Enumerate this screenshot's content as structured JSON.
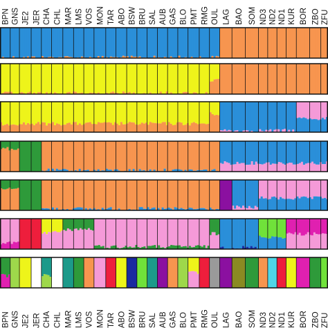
{
  "chart_data": {
    "type": "bar",
    "stacked": true,
    "normalized": true,
    "grid": false,
    "legend": "none",
    "xlabel": "",
    "ylabel": "",
    "ylim": [
      0,
      1
    ],
    "populations": [
      "BPN",
      "GNS",
      "JE2",
      "JER",
      "CHA",
      "CHL",
      "MAR",
      "LMS",
      "VOS",
      "MON",
      "TAR",
      "ABO",
      "BSW",
      "BRU",
      "SAL",
      "AUB",
      "GAS",
      "BLO",
      "PMT",
      "RMG",
      "OUL",
      "LAG",
      "BAO",
      "SOM",
      "ND3",
      "ND2",
      "ND1",
      "KUR",
      "BOR",
      "ZBO",
      "ZFU"
    ],
    "colors": {
      "orange": "#f7954f",
      "blue": "#2a8fd9",
      "yellow": "#eef41a",
      "green": "#2e9a3a",
      "pink": "#f59ad8",
      "purple": "#8b10a0",
      "red": "#ee1e3c",
      "lightgreen": "#9ed84b",
      "magenta": "#e020b0",
      "teal": "#1c9a8a",
      "navy": "#1a2aa0",
      "lime": "#70e23a",
      "olive": "#8a8a22",
      "white": "#ffffff",
      "brown": "#b06030",
      "cyan": "#4fd6e8",
      "grey": "#9a9a9a"
    },
    "rows": [
      {
        "K": 2,
        "segments": [
          {
            "from": "BPN",
            "to": "OUL",
            "components": [
              {
                "color": "blue",
                "value": 0.98
              },
              {
                "color": "orange",
                "value": 0.02
              }
            ]
          },
          {
            "from": "LAG",
            "to": "ZFU",
            "components": [
              {
                "color": "orange",
                "value": 1.0
              }
            ]
          }
        ]
      },
      {
        "K": 3,
        "segments": [
          {
            "from": "BPN",
            "to": "RMG",
            "components": [
              {
                "color": "yellow",
                "value": 0.97
              },
              {
                "color": "orange",
                "value": 0.03
              }
            ]
          },
          {
            "from": "OUL",
            "to": "OUL",
            "components": [
              {
                "color": "yellow",
                "value": 0.55
              },
              {
                "color": "orange",
                "value": 0.45
              }
            ]
          },
          {
            "from": "LAG",
            "to": "ZFU",
            "components": [
              {
                "color": "orange",
                "value": 1.0
              }
            ]
          }
        ]
      },
      {
        "K": 4,
        "segments": [
          {
            "from": "BPN",
            "to": "RMG",
            "components": [
              {
                "color": "yellow",
                "value": 0.72
              },
              {
                "color": "orange",
                "value": 0.28
              }
            ]
          },
          {
            "from": "OUL",
            "to": "OUL",
            "components": [
              {
                "color": "yellow",
                "value": 0.4
              },
              {
                "color": "orange",
                "value": 0.6
              }
            ]
          },
          {
            "from": "LAG",
            "to": "KUR",
            "components": [
              {
                "color": "blue",
                "value": 0.95
              },
              {
                "color": "pink",
                "value": 0.05
              }
            ]
          },
          {
            "from": "BOR",
            "to": "ZFU",
            "components": [
              {
                "color": "pink",
                "value": 0.55
              },
              {
                "color": "blue",
                "value": 0.45
              }
            ]
          }
        ]
      },
      {
        "K": 5,
        "segments": [
          {
            "from": "BPN",
            "to": "GNS",
            "components": [
              {
                "color": "green",
                "value": 0.25
              },
              {
                "color": "orange",
                "value": 0.75
              }
            ]
          },
          {
            "from": "JE2",
            "to": "JER",
            "components": [
              {
                "color": "green",
                "value": 1.0
              }
            ]
          },
          {
            "from": "CHA",
            "to": "OUL",
            "components": [
              {
                "color": "orange",
                "value": 0.96
              },
              {
                "color": "blue",
                "value": 0.04
              }
            ]
          },
          {
            "from": "LAG",
            "to": "ZFU",
            "components": [
              {
                "color": "blue",
                "value": 0.72
              },
              {
                "color": "pink",
                "value": 0.28
              }
            ]
          }
        ]
      },
      {
        "K": 6,
        "segments": [
          {
            "from": "BPN",
            "to": "GNS",
            "components": [
              {
                "color": "green",
                "value": 0.3
              },
              {
                "color": "orange",
                "value": 0.7
              }
            ]
          },
          {
            "from": "JE2",
            "to": "JER",
            "components": [
              {
                "color": "green",
                "value": 1.0
              }
            ]
          },
          {
            "from": "CHA",
            "to": "OUL",
            "components": [
              {
                "color": "orange",
                "value": 0.95
              },
              {
                "color": "blue",
                "value": 0.05
              }
            ]
          },
          {
            "from": "LAG",
            "to": "LAG",
            "components": [
              {
                "color": "purple",
                "value": 1.0
              }
            ]
          },
          {
            "from": "BAO",
            "to": "SOM",
            "components": [
              {
                "color": "blue",
                "value": 0.9
              },
              {
                "color": "pink",
                "value": 0.1
              }
            ]
          },
          {
            "from": "ND3",
            "to": "ZFU",
            "components": [
              {
                "color": "pink",
                "value": 0.6
              },
              {
                "color": "blue",
                "value": 0.4
              }
            ]
          }
        ]
      },
      {
        "K": 8,
        "segments": [
          {
            "from": "BPN",
            "to": "GNS",
            "components": [
              {
                "color": "pink",
                "value": 0.8
              },
              {
                "color": "magenta",
                "value": 0.2
              }
            ]
          },
          {
            "from": "JE2",
            "to": "JER",
            "components": [
              {
                "color": "red",
                "value": 1.0
              }
            ]
          },
          {
            "from": "CHA",
            "to": "CHL",
            "components": [
              {
                "color": "yellow",
                "value": 0.45
              },
              {
                "color": "pink",
                "value": 0.55
              }
            ]
          },
          {
            "from": "MAR",
            "to": "VOS",
            "components": [
              {
                "color": "green",
                "value": 0.35
              },
              {
                "color": "pink",
                "value": 0.65
              }
            ]
          },
          {
            "from": "MON",
            "to": "RMG",
            "components": [
              {
                "color": "pink",
                "value": 0.92
              },
              {
                "color": "green",
                "value": 0.08
              }
            ]
          },
          {
            "from": "OUL",
            "to": "OUL",
            "components": [
              {
                "color": "green",
                "value": 0.5
              },
              {
                "color": "pink",
                "value": 0.5
              }
            ]
          },
          {
            "from": "LAG",
            "to": "SOM",
            "components": [
              {
                "color": "blue",
                "value": 0.95
              },
              {
                "color": "navy",
                "value": 0.05
              }
            ]
          },
          {
            "from": "ND3",
            "to": "ND1",
            "components": [
              {
                "color": "lime",
                "value": 0.6
              },
              {
                "color": "blue",
                "value": 0.4
              }
            ]
          },
          {
            "from": "KUR",
            "to": "ZFU",
            "components": [
              {
                "color": "magenta",
                "value": 0.5
              },
              {
                "color": "pink",
                "value": 0.5
              }
            ]
          }
        ]
      },
      {
        "K": 16,
        "segments": [
          {
            "from": "BPN",
            "to": "BPN",
            "components": [
              {
                "color": "green",
                "value": 0.6
              },
              {
                "color": "magenta",
                "value": 0.4
              }
            ]
          },
          {
            "from": "GNS",
            "to": "GNS",
            "components": [
              {
                "color": "lightgreen",
                "value": 1.0
              }
            ]
          },
          {
            "from": "JE2",
            "to": "JE2",
            "components": [
              {
                "color": "yellow",
                "value": 1.0
              }
            ]
          },
          {
            "from": "JER",
            "to": "JER",
            "components": [
              {
                "color": "white",
                "value": 1.0
              }
            ]
          },
          {
            "from": "CHA",
            "to": "CHA",
            "components": [
              {
                "color": "teal",
                "value": 0.6
              },
              {
                "color": "lightgreen",
                "value": 0.4
              }
            ]
          },
          {
            "from": "CHL",
            "to": "CHL",
            "components": [
              {
                "color": "white",
                "value": 1.0
              }
            ]
          },
          {
            "from": "MAR",
            "to": "MAR",
            "components": [
              {
                "color": "teal",
                "value": 1.0
              }
            ]
          },
          {
            "from": "LMS",
            "to": "LMS",
            "components": [
              {
                "color": "green",
                "value": 1.0
              }
            ]
          },
          {
            "from": "VOS",
            "to": "VOS",
            "components": [
              {
                "color": "orange",
                "value": 1.0
              }
            ]
          },
          {
            "from": "MON",
            "to": "MON",
            "components": [
              {
                "color": "pink",
                "value": 1.0
              }
            ]
          },
          {
            "from": "TAR",
            "to": "TAR",
            "components": [
              {
                "color": "red",
                "value": 1.0
              }
            ]
          },
          {
            "from": "ABO",
            "to": "ABO",
            "components": [
              {
                "color": "yellow",
                "value": 1.0
              }
            ]
          },
          {
            "from": "BSW",
            "to": "BSW",
            "components": [
              {
                "color": "navy",
                "value": 1.0
              }
            ]
          },
          {
            "from": "BRU",
            "to": "BRU",
            "components": [
              {
                "color": "lime",
                "value": 1.0
              }
            ]
          },
          {
            "from": "SAL",
            "to": "SAL",
            "components": [
              {
                "color": "teal",
                "value": 1.0
              }
            ]
          },
          {
            "from": "AUB",
            "to": "AUB",
            "components": [
              {
                "color": "purple",
                "value": 1.0
              }
            ]
          },
          {
            "from": "GAS",
            "to": "GAS",
            "components": [
              {
                "color": "orange",
                "value": 1.0
              }
            ]
          },
          {
            "from": "BLO",
            "to": "BLO",
            "components": [
              {
                "color": "lightgreen",
                "value": 1.0
              }
            ]
          },
          {
            "from": "PMT",
            "to": "PMT",
            "components": [
              {
                "color": "yellow",
                "value": 0.5
              },
              {
                "color": "pink",
                "value": 0.5
              }
            ]
          },
          {
            "from": "RMG",
            "to": "RMG",
            "components": [
              {
                "color": "red",
                "value": 1.0
              }
            ]
          },
          {
            "from": "OUL",
            "to": "OUL",
            "components": [
              {
                "color": "grey",
                "value": 1.0
              }
            ]
          },
          {
            "from": "LAG",
            "to": "LAG",
            "components": [
              {
                "color": "purple",
                "value": 1.0
              }
            ]
          },
          {
            "from": "BAO",
            "to": "BAO",
            "components": [
              {
                "color": "olive",
                "value": 1.0
              }
            ]
          },
          {
            "from": "SOM",
            "to": "SOM",
            "components": [
              {
                "color": "green",
                "value": 1.0
              }
            ]
          },
          {
            "from": "ND3",
            "to": "ND3",
            "components": [
              {
                "color": "orange",
                "value": 1.0
              }
            ]
          },
          {
            "from": "ND2",
            "to": "ND2",
            "components": [
              {
                "color": "cyan",
                "value": 1.0
              }
            ]
          },
          {
            "from": "ND1",
            "to": "ND1",
            "components": [
              {
                "color": "red",
                "value": 1.0
              }
            ]
          },
          {
            "from": "KUR",
            "to": "KUR",
            "components": [
              {
                "color": "yellow",
                "value": 1.0
              }
            ]
          },
          {
            "from": "BOR",
            "to": "BOR",
            "components": [
              {
                "color": "magenta",
                "value": 1.0
              }
            ]
          },
          {
            "from": "ZBO",
            "to": "ZBO",
            "components": [
              {
                "color": "green",
                "value": 1.0
              }
            ]
          },
          {
            "from": "ZFU",
            "to": "ZFU",
            "components": [
              {
                "color": "lime",
                "value": 1.0
              }
            ]
          }
        ]
      }
    ]
  }
}
